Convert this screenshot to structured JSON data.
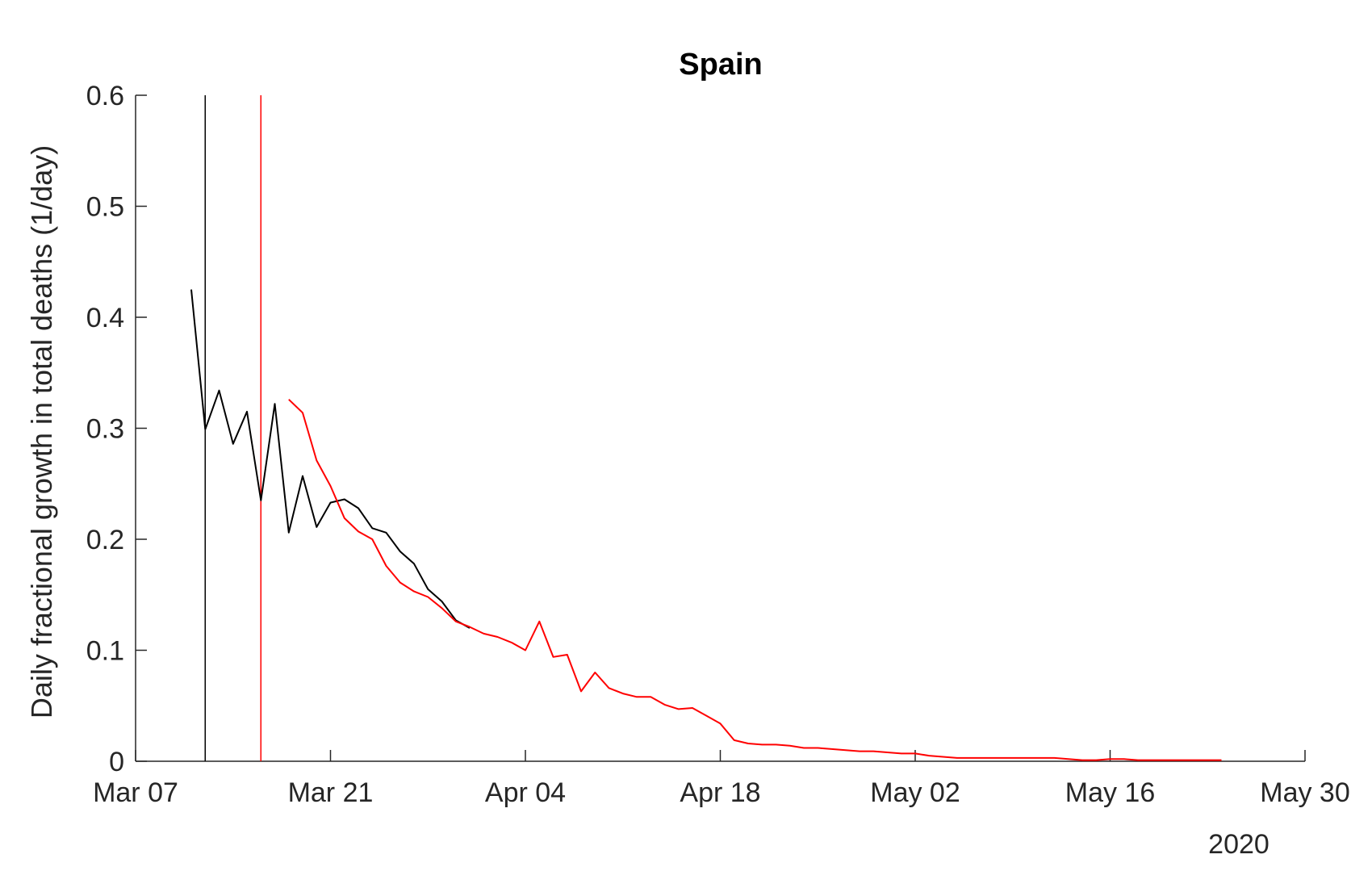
{
  "chart_data": {
    "type": "line",
    "title": "Spain",
    "xlabel": "",
    "ylabel": "Daily fractional growth in total deaths (1/day)",
    "year_label": "2020",
    "x_ticks": [
      "Mar 07",
      "Mar 21",
      "Apr 04",
      "Apr 18",
      "May 02",
      "May 16",
      "May 30"
    ],
    "xlim": [
      "2020-03-07",
      "2020-05-30"
    ],
    "y_ticks": [
      "0",
      "0.1",
      "0.2",
      "0.3",
      "0.4",
      "0.5",
      "0.6"
    ],
    "ylim": [
      0,
      0.6
    ],
    "grid": false,
    "legend": "none",
    "vertical_lines": [
      {
        "x": "2020-03-12",
        "color": "#000000"
      },
      {
        "x": "2020-03-16",
        "color": "#ff0000"
      }
    ],
    "series": [
      {
        "color": "#000000",
        "start_date": "2020-03-11",
        "values": [
          0.425,
          0.299,
          0.334,
          0.286,
          0.315,
          0.235,
          0.322,
          0.206,
          0.257,
          0.211,
          0.233,
          0.236,
          0.228,
          0.21,
          0.206,
          0.189,
          0.178,
          0.155,
          0.144,
          0.127,
          0.12
        ]
      },
      {
        "color": "#ff0000",
        "start_date": "2020-03-18",
        "values": [
          0.326,
          0.314,
          0.271,
          0.248,
          0.219,
          0.207,
          0.2,
          0.176,
          0.161,
          0.153,
          0.148,
          0.138,
          0.126,
          0.121,
          0.115,
          0.112,
          0.107,
          0.1,
          0.126,
          0.094,
          0.096,
          0.063,
          0.08,
          0.066,
          0.061,
          0.058,
          0.058,
          0.051,
          0.047,
          0.048,
          0.041,
          0.034,
          0.019,
          0.016,
          0.015,
          0.015,
          0.014,
          0.012,
          0.012,
          0.011,
          0.01,
          0.009,
          0.009,
          0.008,
          0.007,
          0.007,
          0.005,
          0.004,
          0.003,
          0.003,
          0.003,
          0.003,
          0.003,
          0.003,
          0.003,
          0.003,
          0.002,
          0.001,
          0.001,
          0.002,
          0.002,
          0.001,
          0.001,
          0.001,
          0.001,
          0.001,
          0.001,
          0.001
        ]
      }
    ]
  }
}
